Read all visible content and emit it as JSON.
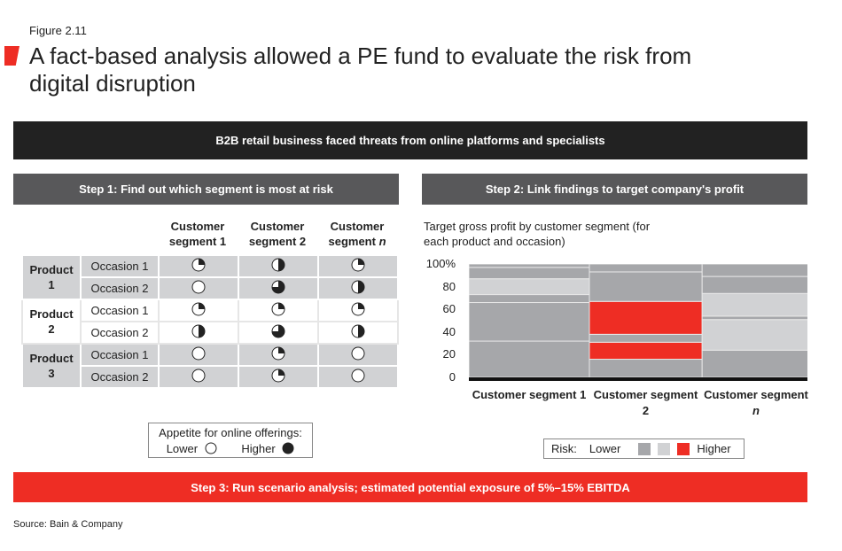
{
  "figure_label": "Figure 2.11",
  "title": "A fact-based analysis allowed a PE fund to evaluate the risk from digital disruption",
  "banner": "B2B retail business faced threats from online platforms and specialists",
  "step1": {
    "header": "Step 1: Find out which segment is most at risk",
    "columns": [
      "Customer segment 1",
      "Customer segment 2",
      "Customer segment "
    ],
    "columns_italic_suffix": [
      "",
      "",
      "n"
    ],
    "rows": [
      {
        "product": "Product 1",
        "occasion": "Occasion 1",
        "appetite": [
          0.25,
          0.5,
          0.25
        ]
      },
      {
        "product": "Product 1",
        "occasion": "Occasion 2",
        "appetite": [
          0,
          0.75,
          0.5
        ]
      },
      {
        "product": "Product 2",
        "occasion": "Occasion 1",
        "appetite": [
          0.25,
          0.25,
          0.25
        ]
      },
      {
        "product": "Product 2",
        "occasion": "Occasion 2",
        "appetite": [
          0.5,
          0.75,
          0.5
        ]
      },
      {
        "product": "Product 3",
        "occasion": "Occasion 1",
        "appetite": [
          0,
          0.25,
          0
        ]
      },
      {
        "product": "Product 3",
        "occasion": "Occasion 2",
        "appetite": [
          0,
          0.25,
          0
        ]
      }
    ],
    "products": [
      "Product 1",
      "Product 2",
      "Product 3"
    ],
    "legend": {
      "title": "Appetite for online offerings:",
      "lower": "Lower",
      "higher": "Higher"
    }
  },
  "step2": {
    "header": "Step 2: Link findings to target company's profit",
    "subtitle": "Target gross profit by customer segment (for each product and occasion)",
    "legend": {
      "label": "Risk:",
      "lower": "Lower",
      "higher": "Higher"
    }
  },
  "step3": "Step 3: Run scenario analysis; estimated potential exposure of 5%–15% EBITDA",
  "source": "Source: Bain & Company",
  "colors": {
    "dark": "#a6a7aa",
    "light": "#d1d2d4",
    "red": "#ee2d24"
  },
  "chart_data": {
    "type": "marimekko",
    "yticks": [
      "0",
      "20",
      "40",
      "60",
      "80",
      "100%"
    ],
    "ylim": [
      0,
      100
    ],
    "categories": [
      "Customer segment 1",
      "Customer segment 2",
      "Customer segment "
    ],
    "category_italic_suffix": [
      "",
      "",
      "n"
    ],
    "column_share_pct": [
      35.6,
      33.3,
      32.1
    ],
    "stacks": [
      [
        {
          "from": 0,
          "to": 32,
          "risk": "dark"
        },
        {
          "from": 32,
          "to": 66,
          "risk": "dark"
        },
        {
          "from": 66,
          "to": 73,
          "risk": "dark"
        },
        {
          "from": 73,
          "to": 87,
          "risk": "light"
        },
        {
          "from": 87,
          "to": 97,
          "risk": "dark"
        },
        {
          "from": 97,
          "to": 100,
          "risk": "dark"
        }
      ],
      [
        {
          "from": 0,
          "to": 16,
          "risk": "dark"
        },
        {
          "from": 16,
          "to": 31,
          "risk": "red"
        },
        {
          "from": 31,
          "to": 38,
          "risk": "dark"
        },
        {
          "from": 38,
          "to": 67,
          "risk": "red"
        },
        {
          "from": 67,
          "to": 93,
          "risk": "dark"
        },
        {
          "from": 93,
          "to": 100,
          "risk": "dark"
        }
      ],
      [
        {
          "from": 0,
          "to": 24,
          "risk": "dark"
        },
        {
          "from": 24,
          "to": 51,
          "risk": "light"
        },
        {
          "from": 51,
          "to": 54,
          "risk": "dark"
        },
        {
          "from": 54,
          "to": 74,
          "risk": "light"
        },
        {
          "from": 74,
          "to": 89,
          "risk": "dark"
        },
        {
          "from": 89,
          "to": 100,
          "risk": "dark"
        }
      ]
    ]
  }
}
